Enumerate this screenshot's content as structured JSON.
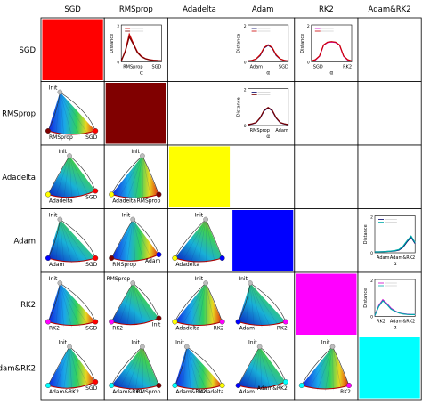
{
  "chart_data": {
    "type": "heatmap",
    "optimizers": [
      "SGD",
      "RMSprop",
      "Adadelta",
      "Adam",
      "RK2",
      "Adam&RK2"
    ],
    "diagonal_colors": {
      "SGD": "#ff0000",
      "RMSprop": "#800000",
      "Adadelta": "#ffff00",
      "Adam": "#0000ff",
      "RK2": "#ff00ff",
      "Adam&RK2": "#00ffff"
    },
    "distance_plots": [
      {
        "pair": [
          "SGD",
          "RMSprop"
        ],
        "ylabel": "Distance",
        "xlabel": "α",
        "xtick_labels": [
          "RMSprop",
          "SGD"
        ],
        "yticks": [
          "0",
          "2"
        ],
        "x": [
          0,
          0.5,
          1,
          1.5,
          2,
          2.5,
          3,
          3.5,
          4,
          4.5,
          5
        ],
        "series": [
          {
            "color": "#cc0000",
            "values": [
              0.05,
              0.6,
              1.5,
              1.0,
              0.55,
              0.3,
              0.18,
              0.12,
              0.09,
              0.07,
              0.06
            ]
          },
          {
            "color": "#7a0000",
            "values": [
              0.05,
              0.55,
              1.35,
              0.95,
              0.5,
              0.28,
              0.17,
              0.11,
              0.08,
              0.07,
              0.06
            ]
          }
        ]
      },
      {
        "pair": [
          "SGD",
          "Adam"
        ],
        "ylabel": "Distance",
        "xlabel": "α",
        "xtick_labels": [
          "Adam",
          "SGD"
        ],
        "yticks": [
          "0",
          "2"
        ],
        "x": [
          0,
          0.5,
          1,
          1.5,
          2,
          2.5,
          3,
          3.5,
          4,
          4.5,
          5
        ],
        "series": [
          {
            "color": "#000066",
            "values": [
              0.05,
              0.08,
              0.15,
              0.35,
              0.75,
              0.9,
              0.75,
              0.35,
              0.15,
              0.08,
              0.05
            ]
          },
          {
            "color": "#cc0000",
            "values": [
              0.05,
              0.08,
              0.16,
              0.38,
              0.78,
              0.93,
              0.78,
              0.38,
              0.16,
              0.08,
              0.05
            ]
          }
        ]
      },
      {
        "pair": [
          "SGD",
          "RK2"
        ],
        "ylabel": "Distance",
        "xlabel": "α",
        "xtick_labels": [
          "SGD",
          "RK2"
        ],
        "yticks": [
          "0",
          "2"
        ],
        "x": [
          0,
          0.5,
          1,
          1.5,
          2,
          2.5,
          3,
          3.5,
          4,
          4.5,
          5
        ],
        "series": [
          {
            "color": "#cc00cc",
            "values": [
              0.05,
              0.1,
              0.3,
              0.9,
              1.05,
              1.08,
              1.05,
              0.9,
              0.3,
              0.1,
              0.05
            ]
          },
          {
            "color": "#cc0000",
            "values": [
              0.05,
              0.12,
              0.32,
              0.92,
              1.07,
              1.1,
              1.07,
              0.92,
              0.32,
              0.12,
              0.05
            ]
          }
        ]
      },
      {
        "pair": [
          "RMSprop",
          "Adam"
        ],
        "ylabel": "Distance",
        "xlabel": "α",
        "xtick_labels": [
          "RMSprop",
          "Adam"
        ],
        "yticks": [
          "0",
          "2"
        ],
        "x": [
          0,
          0.5,
          1,
          1.5,
          2,
          2.5,
          3,
          3.5,
          4,
          4.5,
          5
        ],
        "series": [
          {
            "color": "#000066",
            "values": [
              0.05,
              0.08,
              0.15,
              0.4,
              0.8,
              0.95,
              0.8,
              0.4,
              0.15,
              0.08,
              0.05
            ]
          },
          {
            "color": "#7a0000",
            "values": [
              0.05,
              0.09,
              0.16,
              0.42,
              0.83,
              0.98,
              0.83,
              0.42,
              0.16,
              0.09,
              0.05
            ]
          }
        ]
      },
      {
        "pair": [
          "Adam",
          "Adam&RK2"
        ],
        "ylabel": "Distance",
        "xlabel": "α",
        "xtick_labels": [
          "Adam",
          "Adam&RK2"
        ],
        "yticks": [
          "0",
          "2"
        ],
        "x": [
          0,
          0.5,
          1,
          1.5,
          2,
          2.5,
          3,
          3.5,
          4,
          4.5,
          5
        ],
        "series": [
          {
            "color": "#000066",
            "values": [
              0.05,
              0.05,
              0.06,
              0.07,
              0.08,
              0.1,
              0.15,
              0.3,
              0.6,
              0.85,
              0.5
            ]
          },
          {
            "color": "#00aaaa",
            "values": [
              0.05,
              0.05,
              0.06,
              0.07,
              0.09,
              0.12,
              0.18,
              0.35,
              0.65,
              0.9,
              0.55
            ]
          }
        ]
      },
      {
        "pair": [
          "RK2",
          "Adam&RK2"
        ],
        "ylabel": "Distance",
        "xlabel": "α",
        "xtick_labels": [
          "RK2",
          "Adam&RK2"
        ],
        "yticks": [
          "0",
          "2"
        ],
        "x": [
          0,
          0.5,
          1,
          1.5,
          2,
          2.5,
          3,
          3.5,
          4,
          4.5,
          5
        ],
        "series": [
          {
            "color": "#cc00cc",
            "values": [
              0.05,
              0.6,
              0.9,
              0.7,
              0.45,
              0.3,
              0.2,
              0.15,
              0.12,
              0.1,
              0.1
            ]
          },
          {
            "color": "#00aaaa",
            "values": [
              0.05,
              0.55,
              0.85,
              0.65,
              0.4,
              0.28,
              0.19,
              0.14,
              0.11,
              0.1,
              0.1
            ]
          }
        ]
      }
    ],
    "landscape_plots": [
      {
        "pair": [
          "RMSprop",
          "SGD"
        ],
        "labels": {
          "init": "Init",
          "a": "RMSprop",
          "b": "SGD"
        },
        "color_a": "#800000",
        "color_b": "#ff0000"
      },
      {
        "pair": [
          "Adadelta",
          "SGD"
        ],
        "labels": {
          "init": "Init",
          "a": "Adadelta",
          "b": "SGD"
        },
        "color_a": "#ffff00",
        "color_b": "#ff0000"
      },
      {
        "pair": [
          "Adadelta",
          "RMSprop"
        ],
        "labels": {
          "init": "Init",
          "a": "Adadelta",
          "b": "RMSprop"
        },
        "color_a": "#ffff00",
        "color_b": "#800000"
      },
      {
        "pair": [
          "Adam",
          "SGD"
        ],
        "labels": {
          "init": "Init",
          "a": "Adam",
          "b": "SGD"
        },
        "color_a": "#0000ff",
        "color_b": "#ff0000"
      },
      {
        "pair": [
          "Adam",
          "RMSprop"
        ],
        "labels": {
          "init": "Init",
          "a": "RMSprop",
          "b": "Adam"
        },
        "color_a": "#800000",
        "color_b": "#0000ff"
      },
      {
        "pair": [
          "Adam",
          "Adadelta"
        ],
        "labels": {
          "init": "Init",
          "a": "Adadelta",
          "b": ""
        },
        "color_a": "#ffff00",
        "color_b": "#0000ff"
      },
      {
        "pair": [
          "RK2",
          "SGD"
        ],
        "labels": {
          "init": "Init",
          "a": "RK2",
          "b": "SGD"
        },
        "color_a": "#ff00ff",
        "color_b": "#ff0000"
      },
      {
        "pair": [
          "RK2",
          "RMSprop"
        ],
        "labels": {
          "init": "RMSprop",
          "a": "RK2",
          "b": "Init"
        },
        "color_a": "#ff00ff",
        "color_b": "#800000"
      },
      {
        "pair": [
          "RK2",
          "Adadelta"
        ],
        "labels": {
          "init": "Init",
          "a": "Adadelta",
          "b": "RK2"
        },
        "color_a": "#ffff00",
        "color_b": "#ff00ff"
      },
      {
        "pair": [
          "RK2",
          "Adam"
        ],
        "labels": {
          "init": "Init",
          "a": "Adam",
          "b": "RK2"
        },
        "color_a": "#0000ff",
        "color_b": "#ff00ff"
      },
      {
        "pair": [
          "Adam&RK2",
          "SGD"
        ],
        "labels": {
          "init": "Init",
          "a": "Adam&RK2",
          "b": "SGD"
        },
        "color_a": "#00ffff",
        "color_b": "#ff0000"
      },
      {
        "pair": [
          "Adam&RK2",
          "RMSprop"
        ],
        "labels": {
          "init": "Init",
          "a": "Adam&RK2",
          "b": "RMSprop"
        },
        "color_a": "#00ffff",
        "color_b": "#800000"
      },
      {
        "pair": [
          "Adam&RK2",
          "Adadelta"
        ],
        "labels": {
          "init": "Init",
          "a": "Adam&RK2",
          "b": "Adadelta"
        },
        "color_a": "#00ffff",
        "color_b": "#ffff00"
      },
      {
        "pair": [
          "Adam&RK2",
          "Adam"
        ],
        "labels": {
          "init": "Init",
          "a": "Adam",
          "b": "Adam&RK2"
        },
        "color_a": "#0000ff",
        "color_b": "#00ffff"
      },
      {
        "pair": [
          "Adam&RK2",
          "RK2"
        ],
        "labels": {
          "init": "Init",
          "a": "",
          "b": "RK2"
        },
        "color_a": "#00ffff",
        "color_b": "#ff00ff"
      }
    ]
  }
}
